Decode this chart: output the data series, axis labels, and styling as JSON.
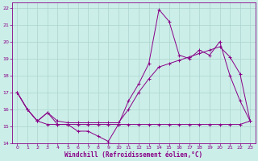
{
  "xlabel": "Windchill (Refroidissement éolien,°C)",
  "background_color": "#cceee8",
  "grid_color": "#aad4ce",
  "line_color": "#880088",
  "xlim": [
    -0.5,
    23.5
  ],
  "ylim": [
    14,
    22.3
  ],
  "xticks": [
    0,
    1,
    2,
    3,
    4,
    5,
    6,
    7,
    8,
    9,
    10,
    11,
    12,
    13,
    14,
    15,
    16,
    17,
    18,
    19,
    20,
    21,
    22,
    23
  ],
  "yticks": [
    14,
    15,
    16,
    17,
    18,
    19,
    20,
    21,
    22
  ],
  "line1_x": [
    0,
    1,
    2,
    3,
    4,
    5,
    6,
    7,
    8,
    9,
    10,
    11,
    12,
    13,
    14,
    15,
    16,
    17,
    18,
    19,
    20,
    21,
    22,
    23
  ],
  "line1_y": [
    17.0,
    16.0,
    15.3,
    15.8,
    15.1,
    15.1,
    14.7,
    14.7,
    14.4,
    14.1,
    15.1,
    16.5,
    17.5,
    18.7,
    21.9,
    21.2,
    19.2,
    19.0,
    19.5,
    19.2,
    20.0,
    18.0,
    16.5,
    15.3
  ],
  "line2_x": [
    0,
    1,
    2,
    3,
    4,
    5,
    6,
    7,
    8,
    9,
    10,
    11,
    12,
    13,
    14,
    15,
    16,
    17,
    18,
    19,
    20,
    21,
    22,
    23
  ],
  "line2_y": [
    17.0,
    16.0,
    15.3,
    15.8,
    15.3,
    15.2,
    15.2,
    15.2,
    15.2,
    15.2,
    15.2,
    16.0,
    17.0,
    17.8,
    18.5,
    18.7,
    18.9,
    19.1,
    19.3,
    19.5,
    19.7,
    19.1,
    18.1,
    15.3
  ],
  "line3_x": [
    0,
    1,
    2,
    3,
    4,
    5,
    6,
    7,
    8,
    9,
    10,
    11,
    12,
    13,
    14,
    15,
    16,
    17,
    18,
    19,
    20,
    21,
    22,
    23
  ],
  "line3_y": [
    17.0,
    16.0,
    15.3,
    15.1,
    15.1,
    15.1,
    15.1,
    15.1,
    15.1,
    15.1,
    15.1,
    15.1,
    15.1,
    15.1,
    15.1,
    15.1,
    15.1,
    15.1,
    15.1,
    15.1,
    15.1,
    15.1,
    15.1,
    15.3
  ]
}
